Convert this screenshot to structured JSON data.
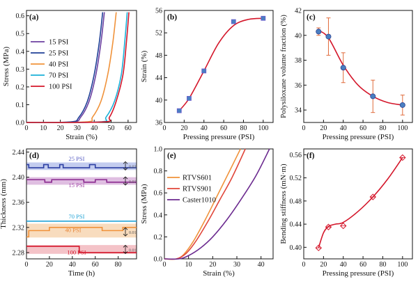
{
  "chart_data": [
    {
      "panel": "(a)",
      "type": "line",
      "xlabel": "Strain (%)",
      "ylabel": "Stress (MPa)",
      "xlim": [
        0,
        65
      ],
      "ylim": [
        0,
        0.63
      ],
      "xticks": [
        0,
        10,
        20,
        30,
        40,
        50,
        60
      ],
      "yticks": [
        0.0,
        0.1,
        0.2,
        0.3,
        0.4,
        0.5,
        0.6
      ],
      "series": [
        {
          "name": "15 PSI",
          "color": "#6b3fa0",
          "x": [
            0,
            27,
            32,
            37,
            41,
            44,
            46
          ],
          "y": [
            0,
            0.003,
            0.03,
            0.12,
            0.27,
            0.45,
            0.62
          ]
        },
        {
          "name": "25 PSI",
          "color": "#1f3f96",
          "x": [
            0,
            26,
            31,
            36,
            40,
            43,
            45
          ],
          "y": [
            0,
            0.003,
            0.03,
            0.12,
            0.27,
            0.45,
            0.62
          ]
        },
        {
          "name": "40 PSI",
          "color": "#f0923a",
          "x": [
            0,
            35,
            39,
            44,
            48,
            51,
            53
          ],
          "y": [
            0,
            0.003,
            0.03,
            0.12,
            0.27,
            0.45,
            0.62
          ]
        },
        {
          "name": "70 PSI",
          "color": "#1ab0d8",
          "x": [
            0,
            43,
            47,
            52,
            56,
            58,
            59.5
          ],
          "y": [
            0,
            0.003,
            0.03,
            0.12,
            0.27,
            0.45,
            0.62
          ]
        },
        {
          "name": "100 PSI",
          "color": "#d4162a",
          "x": [
            0,
            45,
            49,
            53,
            57,
            59,
            60.5
          ],
          "y": [
            0,
            0.003,
            0.03,
            0.12,
            0.27,
            0.45,
            0.62
          ]
        }
      ]
    },
    {
      "panel": "(b)",
      "type": "scatter",
      "xlabel": "Pressing pressure (PSI)",
      "ylabel": "Strain (%)",
      "xlim": [
        0,
        110
      ],
      "ylim": [
        36,
        56
      ],
      "xticks": [
        0,
        20,
        40,
        60,
        80,
        100
      ],
      "yticks": [
        36,
        40,
        44,
        48,
        52,
        56
      ],
      "series": [
        {
          "name": "data",
          "color": "#4a7fc1",
          "x": [
            15,
            25,
            40,
            70,
            100
          ],
          "y": [
            38.1,
            40.3,
            45.2,
            54.0,
            54.6
          ]
        },
        {
          "name": "fit",
          "color": "#d4162a",
          "x": [
            15,
            25,
            40,
            55,
            70,
            85,
            100
          ],
          "y": [
            38.1,
            40.3,
            45.2,
            50.2,
            53.3,
            54.4,
            54.6
          ]
        }
      ]
    },
    {
      "panel": "(c)",
      "type": "scatter",
      "xlabel": "Pressing pressure (PSI)",
      "ylabel": "Polysiloxane volume fraction (%)",
      "xlim": [
        0,
        110
      ],
      "ylim": [
        33,
        42
      ],
      "xticks": [
        0,
        20,
        40,
        60,
        80,
        100
      ],
      "yticks": [
        34,
        36,
        38,
        40,
        42
      ],
      "series": [
        {
          "name": "data",
          "color": "#4a7fc1",
          "x": [
            15,
            25,
            40,
            70,
            100
          ],
          "y": [
            40.3,
            39.9,
            37.4,
            35.1,
            34.4
          ],
          "err": [
            0.3,
            1.5,
            1.2,
            1.3,
            0.8
          ]
        },
        {
          "name": "fit",
          "color": "#d4162a",
          "x": [
            15,
            25,
            40,
            55,
            70,
            85,
            100
          ],
          "y": [
            40.4,
            39.8,
            37.6,
            36.0,
            35.1,
            34.6,
            34.4
          ]
        }
      ]
    },
    {
      "panel": "(d)",
      "type": "line",
      "xlabel": "Time (h)",
      "ylabel": "Thickness (mm)",
      "xlim": [
        0,
        96
      ],
      "ylim": [
        2.27,
        2.445
      ],
      "xticks": [
        0,
        20,
        40,
        60,
        80
      ],
      "yticks": [
        2.28,
        2.32,
        2.36,
        2.4,
        2.44
      ],
      "series": [
        {
          "name": "25 PSI",
          "color": "#2c3fa3",
          "band": "#b9c3ec",
          "x": [
            0,
            2,
            2,
            15,
            15,
            19,
            19,
            29,
            29,
            32,
            32,
            55,
            55,
            60,
            60,
            96
          ],
          "y": [
            2.42,
            2.42,
            2.415,
            2.415,
            2.42,
            2.42,
            2.415,
            2.415,
            2.42,
            2.42,
            2.415,
            2.415,
            2.42,
            2.42,
            2.415,
            2.415
          ]
        },
        {
          "name": "15 PSI",
          "color": "#8a2a8f",
          "band": "#d9b3dc",
          "x": [
            0,
            16,
            16,
            22,
            22,
            50,
            50,
            60,
            60,
            70,
            70,
            96
          ],
          "y": [
            2.396,
            2.396,
            2.392,
            2.392,
            2.396,
            2.396,
            2.392,
            2.392,
            2.396,
            2.396,
            2.392,
            2.392
          ]
        },
        {
          "name": "70 PSI",
          "color": "#22a3d6",
          "band": "#ffffff",
          "x": [
            0,
            96
          ],
          "y": [
            2.33,
            2.33
          ]
        },
        {
          "name": "40 PSI",
          "color": "#f0923a",
          "band": "#f7d6b3",
          "x": [
            0,
            2,
            2,
            20,
            20,
            66,
            66,
            84,
            84,
            96
          ],
          "y": [
            2.305,
            2.305,
            2.315,
            2.315,
            2.32,
            2.32,
            2.315,
            2.315,
            2.32,
            2.32
          ]
        },
        {
          "name": "100 PSI",
          "color": "#d4162a",
          "band": "#f2b8be",
          "x": [
            0,
            46,
            46,
            96
          ],
          "y": [
            2.29,
            2.29,
            2.28,
            2.28
          ]
        }
      ],
      "annotations": [
        "0.03",
        "0.01",
        "0.01",
        "0.01"
      ]
    },
    {
      "panel": "(e)",
      "type": "line",
      "xlabel": "Strain (%)",
      "ylabel": "Stress (MPa)",
      "xlim": [
        0,
        45
      ],
      "ylim": [
        0,
        1.0
      ],
      "xticks": [
        0,
        10,
        20,
        30,
        40
      ],
      "yticks": [
        0.0,
        0.2,
        0.4,
        0.6,
        0.8,
        1.0
      ],
      "series": [
        {
          "name": "RTVS601",
          "color": "#f0923a",
          "x": [
            0,
            5,
            8,
            12,
            17,
            22,
            27,
            31.5
          ],
          "y": [
            0,
            0.0,
            0.04,
            0.16,
            0.36,
            0.58,
            0.8,
            1.0
          ]
        },
        {
          "name": "RTVS901",
          "color": "#e0463a",
          "x": [
            0,
            5,
            9,
            13,
            18,
            23,
            28,
            33.5
          ],
          "y": [
            0,
            0.0,
            0.05,
            0.16,
            0.34,
            0.54,
            0.74,
            1.0
          ]
        },
        {
          "name": "Caster1010",
          "color": "#6b2a8f",
          "x": [
            0,
            6,
            10,
            15,
            20,
            26,
            32,
            38,
            43.5
          ],
          "y": [
            0,
            0.0,
            0.03,
            0.1,
            0.2,
            0.36,
            0.55,
            0.76,
            1.0
          ]
        }
      ]
    },
    {
      "panel": "(f)",
      "type": "scatter",
      "xlabel": "Pressing pressure (PSI)",
      "ylabel": "Bending stiffness (mN·m)",
      "xlim": [
        0,
        110
      ],
      "ylim": [
        0.38,
        0.57
      ],
      "xticks": [
        0,
        20,
        40,
        60,
        80,
        100
      ],
      "yticks": [
        0.4,
        0.44,
        0.48,
        0.52,
        0.56
      ],
      "series": [
        {
          "name": "data",
          "color": "#d4162a",
          "x": [
            15,
            25,
            40,
            70,
            100
          ],
          "y": [
            0.399,
            0.435,
            0.437,
            0.487,
            0.555
          ]
        },
        {
          "name": "fit",
          "color": "#d4162a",
          "x": [
            15,
            20,
            25,
            32,
            40,
            55,
            70,
            85,
            100
          ],
          "y": [
            0.399,
            0.425,
            0.436,
            0.44,
            0.443,
            0.462,
            0.487,
            0.518,
            0.555
          ]
        }
      ]
    }
  ]
}
